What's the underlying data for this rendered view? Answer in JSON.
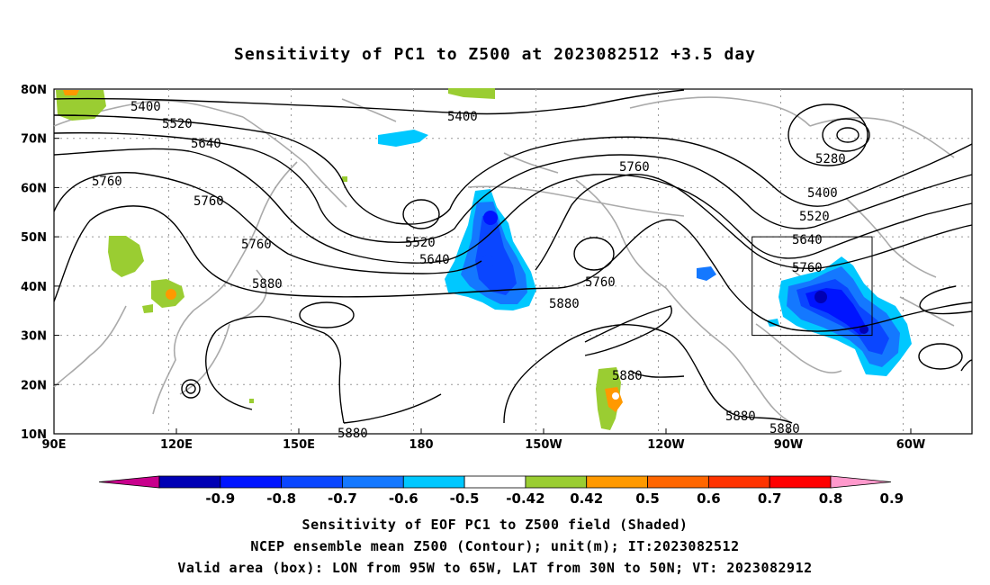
{
  "title": "Sensitivity of PC1 to Z500 at 2023082512 +3.5 day",
  "lat_labels": [
    "80N",
    "70N",
    "60N",
    "50N",
    "40N",
    "30N",
    "20N",
    "10N"
  ],
  "lon_labels": [
    "90E",
    "120E",
    "150E",
    "180",
    "150W",
    "120W",
    "90W",
    "60W"
  ],
  "contour_labels": [
    "5400",
    "5520",
    "5640",
    "5760",
    "5760",
    "5760",
    "5880",
    "5400",
    "5280",
    "5400",
    "5520",
    "5640",
    "5760",
    "5520",
    "5640",
    "5760",
    "5760",
    "5880",
    "5880",
    "5880",
    "5880",
    "5880",
    "5880"
  ],
  "colorbar": {
    "labels": [
      "-0.9",
      "-0.8",
      "-0.7",
      "-0.6",
      "-0.5",
      "-0.42",
      "0.42",
      "0.5",
      "0.6",
      "0.7",
      "0.8",
      "0.9"
    ],
    "colors": [
      "#c8008c",
      "#0000b4",
      "#0014ff",
      "#0a46ff",
      "#1478ff",
      "#00c8ff",
      "#ffffff",
      "#9acd32",
      "#ff9900",
      "#ff6600",
      "#ff3300",
      "#ff0000",
      "#ff99cc"
    ]
  },
  "captions": [
    "Sensitivity of EOF PC1 to Z500 field (Shaded)",
    "NCEP ensemble mean Z500 (Contour); unit(m); IT:2023082512",
    "Valid area (box): LON from 95W to 65W, LAT from 30N to 50N; VT: 2023082912"
  ]
}
